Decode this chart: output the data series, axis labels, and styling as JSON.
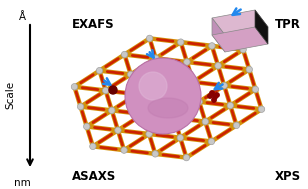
{
  "bg_color": "#ffffff",
  "framework_gold": "#D4920A",
  "framework_orange": "#E8A020",
  "rod_red": "#CC2200",
  "node_color": "#C8C8C8",
  "node_outline": "#A0A0A0",
  "sphere_color": "#D090C0",
  "sphere_highlight": "#E0B8D8",
  "sphere_shadow": "#B870A8",
  "block_top": "#D4A0C4",
  "block_front": "#C090B8",
  "block_right": "#1a1a1a",
  "arrow_color": "#2288EE",
  "cu_single_color": "#660000",
  "cu_cluster_color": "#880000",
  "label_exafs": "EXAFS",
  "label_tpr": "TPR",
  "label_asaxs": "ASAXS",
  "label_xps": "XPS",
  "label_scale": "Scale",
  "label_angstrom": "Å",
  "label_nm": "nm",
  "figsize": [
    3.08,
    1.89
  ],
  "dpi": 100
}
